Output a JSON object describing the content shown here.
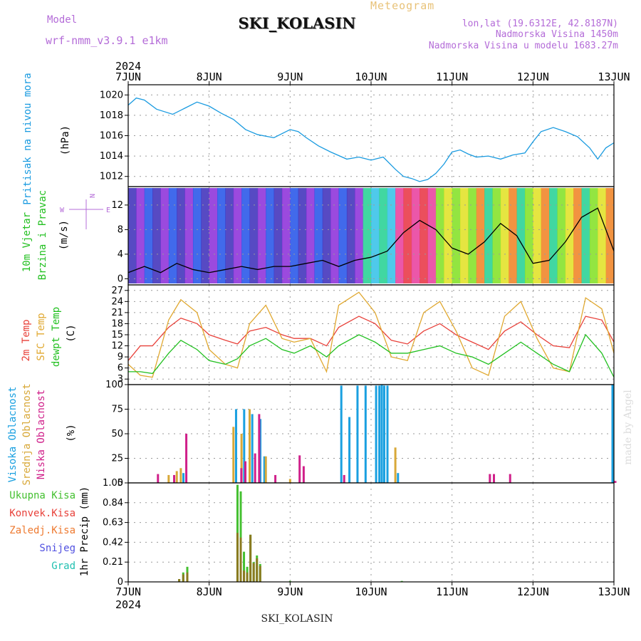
{
  "header": {
    "title": "SKI_KOLASIN",
    "subtitle": "Meteogram",
    "model_label": "Model",
    "model_name": "wrf-nmm_v3.9.1 e1km",
    "lonlat": "lon,lat (19.6312E, 42.8187N)",
    "elevation": "Nadmorska Visina 1450m",
    "model_elevation": "Nadmorska Visina u modelu 1683.27m"
  },
  "footer": {
    "station": "SKI_KOLASIN"
  },
  "watermark": "made by Angel",
  "colors": {
    "pressure": "#1a9be0",
    "t2m": "#e8413a",
    "sfc": "#e0a830",
    "dew": "#22c020",
    "high_cloud": "#1aa0e0",
    "mid_cloud": "#d8a838",
    "low_cloud": "#d0208a",
    "total_precip": "#44c030",
    "conv_precip": "#e8413a",
    "frozen_precip": "#ee7a30",
    "snow": "#5050e0",
    "hail": "#20c0b0",
    "wind_speed": "#e8413a",
    "purple": "#b46cd8"
  },
  "chart_data": [
    {
      "type": "line",
      "panel": "pressure",
      "ylabel_left": "Pritisak na nivou mora",
      "ylabel_unit": "(hPa)",
      "ylim": [
        1011,
        1021
      ],
      "yticks": [
        1012,
        1014,
        1016,
        1018,
        1020
      ],
      "x_start_label": "2024",
      "x_ticks": [
        "7JUN",
        "8JUN",
        "9JUN",
        "10JUN",
        "11JUN",
        "12JUN",
        "13JUN"
      ],
      "x_range_days": [
        0,
        6
      ],
      "grid": true,
      "series": [
        {
          "name": "",
          "x": [
            0,
            0.1,
            0.2,
            0.35,
            0.55,
            0.7,
            0.85,
            1.0,
            1.15,
            1.3,
            1.45,
            1.6,
            1.8,
            2.0,
            2.1,
            2.2,
            2.35,
            2.5,
            2.7,
            2.85,
            3.0,
            3.15,
            3.3,
            3.4,
            3.5,
            3.6,
            3.7,
            3.8,
            3.9,
            4.0,
            4.1,
            4.2,
            4.3,
            4.45,
            4.6,
            4.75,
            4.9,
            5.0,
            5.1,
            5.25,
            5.4,
            5.55,
            5.7,
            5.8,
            5.9,
            6.0
          ],
          "values": [
            1019.0,
            1019.7,
            1019.5,
            1018.6,
            1018.1,
            1018.7,
            1019.3,
            1018.9,
            1018.2,
            1017.6,
            1016.6,
            1016.1,
            1015.8,
            1016.6,
            1016.4,
            1015.8,
            1015.0,
            1014.4,
            1013.7,
            1013.9,
            1013.6,
            1013.9,
            1012.7,
            1012.0,
            1011.8,
            1011.5,
            1011.7,
            1012.3,
            1013.2,
            1014.4,
            1014.6,
            1014.2,
            1013.9,
            1014.0,
            1013.7,
            1014.1,
            1014.3,
            1015.4,
            1016.4,
            1016.8,
            1016.4,
            1015.9,
            1014.8,
            1013.7,
            1014.8,
            1015.3
          ]
        }
      ]
    },
    {
      "type": "line",
      "panel": "wind",
      "ylabel_left": "10m Vjetar",
      "ylabel_left2": "Brzina i Pravac",
      "ylabel_unit": "(m/s)",
      "compass": [
        "N",
        "E",
        "W"
      ],
      "ylim": [
        -1,
        15
      ],
      "yticks": [
        0,
        4,
        8,
        12
      ],
      "grid": true,
      "series": [
        {
          "name": "",
          "x": [
            0,
            0.2,
            0.4,
            0.6,
            0.8,
            1.0,
            1.2,
            1.4,
            1.6,
            1.8,
            2.0,
            2.2,
            2.4,
            2.6,
            2.8,
            3.0,
            3.2,
            3.4,
            3.6,
            3.8,
            4.0,
            4.2,
            4.4,
            4.6,
            4.8,
            5.0,
            5.2,
            5.4,
            5.6,
            5.8,
            6.0
          ],
          "values": [
            1.0,
            2.0,
            1.0,
            2.5,
            1.5,
            1.0,
            1.5,
            2.0,
            1.5,
            2.0,
            2.0,
            2.5,
            3.0,
            2.0,
            3.0,
            3.5,
            4.5,
            7.5,
            9.5,
            8.0,
            5.0,
            4.0,
            6.0,
            9.0,
            7.0,
            2.5,
            3.0,
            6.0,
            10.0,
            11.5,
            4.5
          ]
        }
      ]
    },
    {
      "type": "line",
      "panel": "temperature",
      "ylabel_left": "2m Temp",
      "ylabel_left2": "SFC Temp",
      "ylabel_left3": "dewpt Temp",
      "ylabel_unit": "(C)",
      "ylim": [
        1.5,
        28.5
      ],
      "yticks": [
        3,
        6,
        9,
        12,
        15,
        18,
        21,
        24,
        27
      ],
      "grid": true,
      "series": [
        {
          "name": "2m Temp",
          "x": [
            0,
            0.15,
            0.3,
            0.5,
            0.65,
            0.85,
            1.0,
            1.2,
            1.35,
            1.5,
            1.7,
            1.9,
            2.05,
            2.25,
            2.45,
            2.6,
            2.85,
            3.05,
            3.25,
            3.45,
            3.65,
            3.85,
            4.05,
            4.25,
            4.45,
            4.65,
            4.85,
            5.05,
            5.25,
            5.45,
            5.65,
            5.85,
            6.0
          ],
          "values": [
            8,
            12,
            12,
            17,
            19.5,
            18,
            15,
            13.5,
            12.5,
            16,
            17,
            15,
            14,
            14,
            12,
            17,
            20,
            18,
            13.5,
            12.5,
            16,
            18,
            15,
            13,
            11,
            16,
            18.5,
            15,
            12,
            11.5,
            20,
            19,
            13
          ]
        },
        {
          "name": "SFC Temp",
          "x": [
            0,
            0.15,
            0.3,
            0.5,
            0.65,
            0.85,
            1.0,
            1.2,
            1.35,
            1.5,
            1.7,
            1.9,
            2.05,
            2.25,
            2.45,
            2.6,
            2.85,
            3.05,
            3.25,
            3.45,
            3.65,
            3.85,
            4.05,
            4.25,
            4.45,
            4.65,
            4.85,
            5.05,
            5.25,
            5.45,
            5.65,
            5.85,
            6.0
          ],
          "values": [
            7,
            4,
            3.5,
            19,
            24.5,
            21,
            11,
            7,
            6,
            18,
            23,
            14,
            13,
            14,
            5,
            23,
            26.5,
            21,
            9,
            8,
            21,
            24,
            16,
            6,
            4,
            20,
            24,
            14,
            6,
            5,
            25,
            22,
            10
          ]
        },
        {
          "name": "dewpt Temp",
          "x": [
            0,
            0.15,
            0.3,
            0.5,
            0.65,
            0.85,
            1.0,
            1.2,
            1.35,
            1.5,
            1.7,
            1.9,
            2.05,
            2.25,
            2.45,
            2.6,
            2.85,
            3.05,
            3.25,
            3.45,
            3.65,
            3.85,
            4.05,
            4.25,
            4.45,
            4.65,
            4.85,
            5.05,
            5.25,
            5.45,
            5.65,
            5.85,
            6.0
          ],
          "values": [
            5,
            5,
            4.5,
            10,
            13.5,
            11,
            8,
            7,
            8.5,
            12,
            14,
            11,
            10,
            12,
            9,
            12,
            15,
            13,
            10,
            10,
            11,
            12,
            10,
            9,
            7,
            10,
            13,
            10,
            7,
            5,
            15,
            10,
            3.5
          ]
        }
      ]
    },
    {
      "type": "bar",
      "panel": "cloud",
      "ylabel_left": "Visoka Oblacnost",
      "ylabel_left2": "Srednja Oblacnost",
      "ylabel_left3": "Niska Oblacnost",
      "ylabel_unit": "(%)",
      "ylim": [
        0,
        100
      ],
      "yticks": [
        0,
        25,
        50,
        75,
        100
      ],
      "grid": true,
      "series": [
        {
          "name": "Visoka Oblacnost",
          "x": [
            0.7,
            1.35,
            1.45,
            1.55,
            1.65,
            1.7,
            2.65,
            2.75,
            2.85,
            2.95,
            3.08,
            3.12,
            3.15,
            3.18,
            3.22,
            3.35,
            6.0
          ],
          "values": [
            10,
            75,
            75,
            70,
            65,
            27,
            99,
            67,
            99,
            99,
            99,
            99,
            100,
            99,
            99,
            10,
            100
          ]
        },
        {
          "name": "Srednja Oblacnost",
          "x": [
            0.5,
            0.6,
            0.65,
            1.3,
            1.4,
            1.5,
            1.7,
            2.0,
            3.3
          ],
          "values": [
            8,
            12,
            15,
            57,
            50,
            75,
            27,
            4,
            36
          ]
        },
        {
          "name": "Niska Oblacnost",
          "x": [
            0.35,
            0.55,
            0.7,
            1.38,
            1.43,
            1.55,
            1.6,
            1.8,
            2.1,
            2.15,
            2.65,
            4.45,
            4.5,
            4.7,
            6.0
          ],
          "values": [
            9,
            8,
            50,
            15,
            22,
            30,
            70,
            8,
            28,
            17,
            8,
            9,
            9,
            9,
            2
          ]
        }
      ]
    },
    {
      "type": "bar",
      "panel": "precipitation",
      "ylabel_left": "Ukupna Kisa",
      "ylabel_left2": "Konvek.Kisa",
      "ylabel_left3": "Zaledj.Kisa",
      "ylabel_left4": "Snijeg",
      "ylabel_left5": "Grad",
      "ylabel_unit": "1hr Precip (mm)",
      "ylim": [
        0,
        1.05
      ],
      "yticks": [
        0,
        0.21,
        0.42,
        0.63,
        0.84,
        1.05
      ],
      "grid": true,
      "series": [
        {
          "name": "Ukupna Kisa",
          "x": [
            0.63,
            0.68,
            0.73,
            1.35,
            1.39,
            1.43,
            1.47,
            1.51,
            1.55,
            1.59,
            1.63,
            2.0,
            3.38
          ],
          "values": [
            0.03,
            0.1,
            0.16,
            1.03,
            0.96,
            0.32,
            0.16,
            0.5,
            0.21,
            0.28,
            0.19,
            0.01,
            0.01
          ]
        },
        {
          "name": "Konvek.Kisa",
          "x": [
            0.63,
            0.68,
            0.73,
            1.35,
            1.39,
            1.43,
            1.47,
            1.51,
            1.55,
            1.59,
            1.63
          ],
          "values": [
            0.03,
            0.08,
            0.1,
            0.52,
            0.47,
            0.12,
            0.1,
            0.5,
            0.2,
            0.25,
            0.17
          ]
        }
      ]
    }
  ]
}
